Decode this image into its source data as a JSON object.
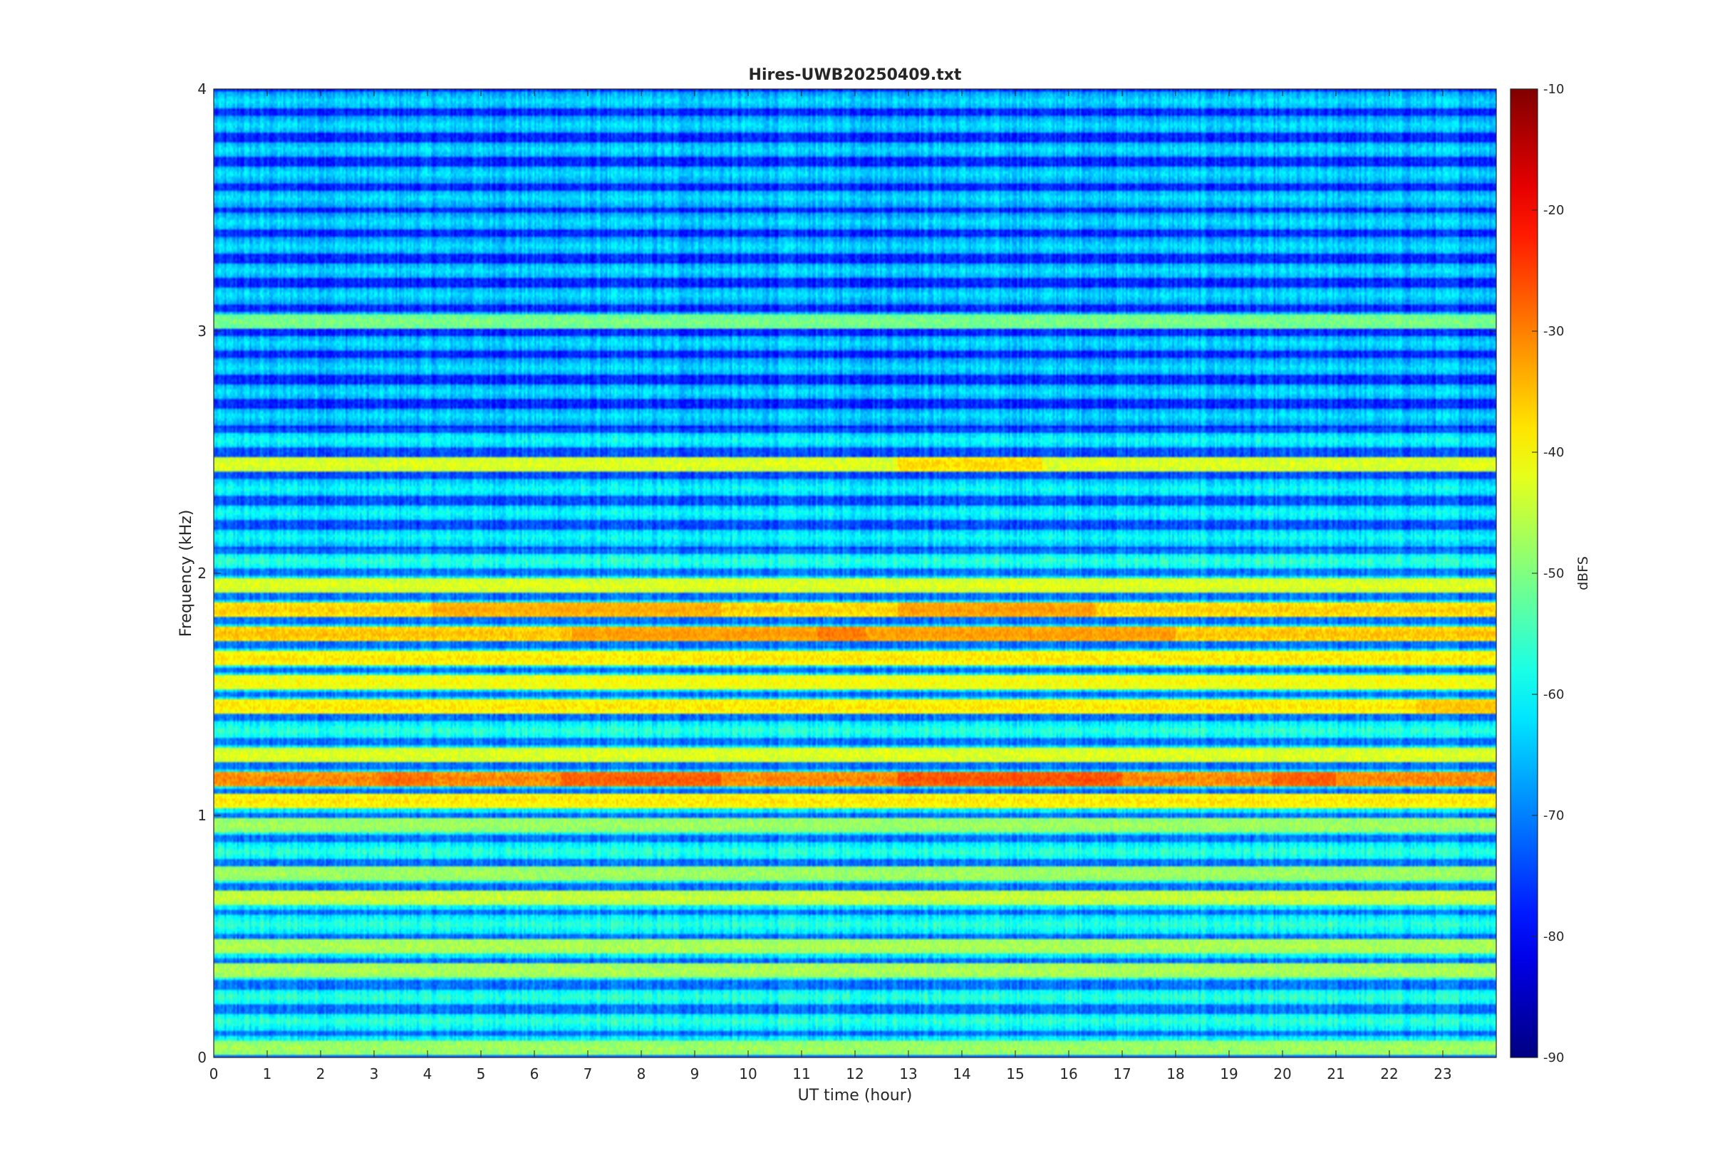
{
  "chart_data": {
    "type": "heatmap",
    "title": "Hires-UWB20250409.txt",
    "xlabel": "UT time (hour)",
    "ylabel": "Frequency (kHz)",
    "xlim": [
      0,
      24
    ],
    "ylim": [
      0,
      4
    ],
    "x_ticks": [
      0,
      1,
      2,
      3,
      4,
      5,
      6,
      7,
      8,
      9,
      10,
      11,
      12,
      13,
      14,
      15,
      16,
      17,
      18,
      19,
      20,
      21,
      22,
      23
    ],
    "y_ticks": [
      0,
      1,
      2,
      3,
      4
    ],
    "colorbar": {
      "label": "dBFS",
      "colormap": "jet",
      "clim": [
        -90,
        -10
      ],
      "ticks": [
        -90,
        -80,
        -70,
        -60,
        -50,
        -40,
        -30,
        -20,
        -10
      ]
    },
    "bands": [
      {
        "freq_khz": 0.04,
        "level_dbfs": -47
      },
      {
        "freq_khz": 0.36,
        "level_dbfs": -46
      },
      {
        "freq_khz": 0.46,
        "level_dbfs": -46
      },
      {
        "freq_khz": 0.66,
        "level_dbfs": -44
      },
      {
        "freq_khz": 0.76,
        "level_dbfs": -47
      },
      {
        "freq_khz": 0.96,
        "level_dbfs": -47
      },
      {
        "freq_khz": 1.06,
        "level_dbfs": -38
      },
      {
        "freq_khz": 1.15,
        "level_dbfs": -30
      },
      {
        "freq_khz": 1.25,
        "level_dbfs": -42
      },
      {
        "freq_khz": 1.45,
        "level_dbfs": -38
      },
      {
        "freq_khz": 1.55,
        "level_dbfs": -40
      },
      {
        "freq_khz": 1.65,
        "level_dbfs": -38
      },
      {
        "freq_khz": 1.75,
        "level_dbfs": -35
      },
      {
        "freq_khz": 1.85,
        "level_dbfs": -36
      },
      {
        "freq_khz": 1.95,
        "level_dbfs": -42
      },
      {
        "freq_khz": 2.45,
        "level_dbfs": -42
      },
      {
        "freq_khz": 3.04,
        "level_dbfs": -50
      }
    ],
    "hotspots": [
      {
        "freq_khz": 1.15,
        "t_start": 3.1,
        "t_end": 4.1,
        "level_dbfs": -28
      },
      {
        "freq_khz": 1.15,
        "t_start": 6.5,
        "t_end": 9.5,
        "level_dbfs": -27
      },
      {
        "freq_khz": 1.15,
        "t_start": 12.8,
        "t_end": 17.0,
        "level_dbfs": -26
      },
      {
        "freq_khz": 1.15,
        "t_start": 19.8,
        "t_end": 21.0,
        "level_dbfs": -27
      },
      {
        "freq_khz": 1.75,
        "t_start": 11.3,
        "t_end": 12.2,
        "level_dbfs": -29
      },
      {
        "freq_khz": 1.75,
        "t_start": 6.7,
        "t_end": 18.0,
        "level_dbfs": -32
      },
      {
        "freq_khz": 1.85,
        "t_start": 4.1,
        "t_end": 9.5,
        "level_dbfs": -33
      },
      {
        "freq_khz": 1.85,
        "t_start": 12.8,
        "t_end": 16.5,
        "level_dbfs": -32
      },
      {
        "freq_khz": 2.45,
        "t_start": 12.8,
        "t_end": 15.5,
        "level_dbfs": -37
      },
      {
        "freq_khz": 1.45,
        "t_start": 22.5,
        "t_end": 24.0,
        "level_dbfs": -35
      }
    ],
    "background_level_dbfs": -62,
    "grid": false
  }
}
